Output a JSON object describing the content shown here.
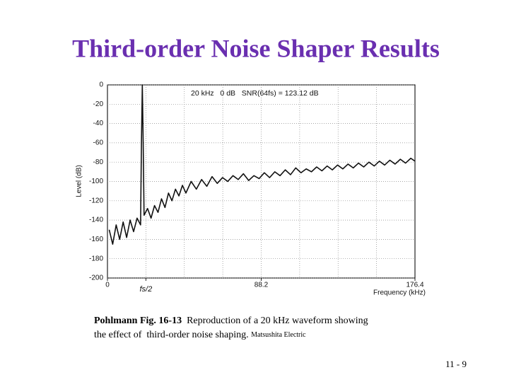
{
  "chart_data": {
    "type": "line",
    "title": "Third-order Noise Shaper Results",
    "annotation": "20 kHz   0 dB   SNR(64fs) = 123.12 dB",
    "ylabel": "Level (dB)",
    "xlabel": "Frequency (kHz)",
    "x": [
      1,
      3,
      5,
      7,
      9,
      11,
      13,
      15,
      17,
      19,
      19.5,
      20,
      20.5,
      21,
      23,
      25,
      27,
      29,
      31,
      33,
      35,
      37,
      39,
      41,
      43,
      45,
      48,
      51,
      54,
      57,
      60,
      63,
      66,
      69,
      72,
      75,
      78,
      81,
      84,
      87,
      90,
      93,
      96,
      99,
      102,
      105,
      108,
      111,
      114,
      117,
      120,
      123,
      126,
      129,
      132,
      135,
      138,
      141,
      144,
      147,
      150,
      153,
      156,
      159,
      162,
      165,
      168,
      171,
      174,
      176.4
    ],
    "series": [
      {
        "color": "#111111",
        "values": [
          -150,
          -165,
          -145,
          -160,
          -142,
          -158,
          -140,
          -152,
          -138,
          -145,
          -60,
          0,
          -60,
          -135,
          -128,
          -138,
          -125,
          -132,
          -118,
          -127,
          -112,
          -120,
          -108,
          -115,
          -104,
          -112,
          -100,
          -108,
          -98,
          -105,
          -95,
          -102,
          -96,
          -100,
          -94,
          -98,
          -92,
          -99,
          -94,
          -97,
          -91,
          -96,
          -90,
          -94,
          -88,
          -93,
          -86,
          -91,
          -87,
          -90,
          -85,
          -89,
          -84,
          -88,
          -83,
          -87,
          -82,
          -86,
          -81,
          -85,
          -80,
          -84,
          -79,
          -83,
          -78,
          -82,
          -77,
          -81,
          -76,
          -79
        ]
      }
    ],
    "xlim": [
      0,
      176.4
    ],
    "ylim": [
      -200,
      0
    ],
    "xticks": [
      0,
      {
        "value": 22.05,
        "label": "fs/2"
      },
      88.2,
      176.4
    ],
    "xgrid": [
      22.05,
      44.1,
      66.15,
      88.2,
      110.25,
      132.3,
      154.35
    ],
    "yticks": [
      0,
      -20,
      -40,
      -60,
      -80,
      -100,
      -120,
      -140,
      -160,
      -180,
      -200
    ],
    "grid": true
  },
  "caption": {
    "source": "Pohlmann Fig. 16-13",
    "line1": "Reproduction of a 20 kHz waveform showing",
    "line2": "the effect of  third-order noise shaping.",
    "credit": "Matsushita Electric"
  },
  "page_number": "11 - 9"
}
